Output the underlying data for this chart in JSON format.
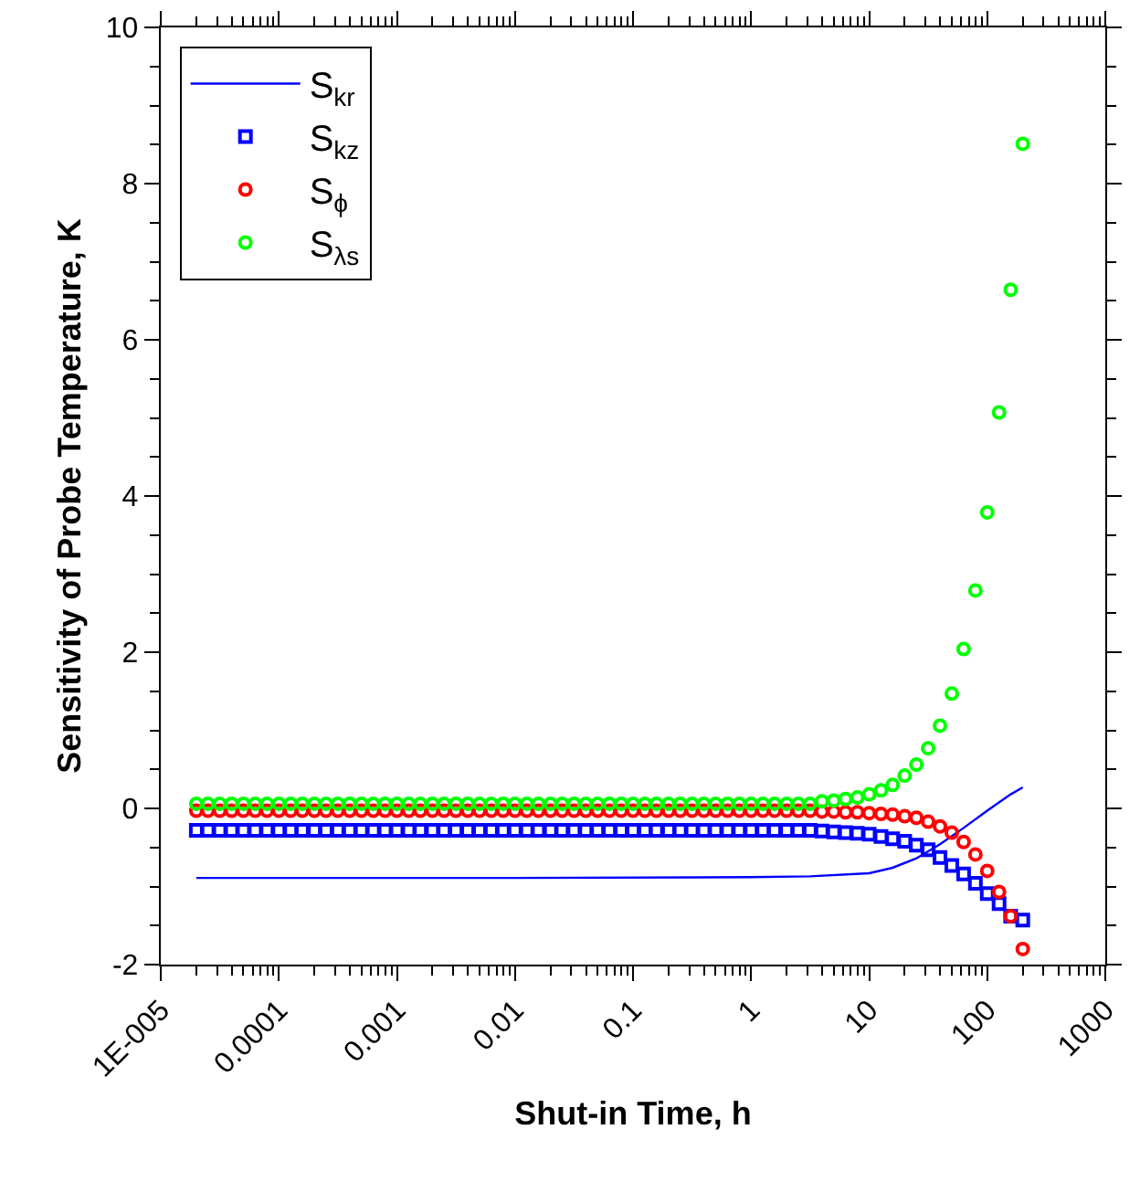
{
  "chart_data": {
    "type": "scatter",
    "xlabel": "Shut-in Time, h",
    "ylabel": "Sensitivity of Probe Temperature, K",
    "log": "x",
    "grid": false,
    "legend": "top left",
    "xlim": [
      1e-05,
      1000
    ],
    "xticks": [
      {
        "value": 1e-05,
        "label": "1E-005"
      },
      0.0001,
      0.001,
      0.01,
      0.1,
      1,
      10,
      100,
      1000
    ],
    "ylim": [
      -2,
      10
    ],
    "yticks": [
      -2,
      0,
      2,
      4,
      6,
      8,
      10
    ],
    "x": [
      2e-05,
      2.51e-05,
      3.16e-05,
      3.98e-05,
      5.01e-05,
      6.31e-05,
      7.94e-05,
      0.0001,
      0.000126,
      0.000158,
      0.0002,
      0.000251,
      0.000316,
      0.000398,
      0.000501,
      0.000631,
      0.000794,
      0.001,
      0.00126,
      0.00158,
      0.002,
      0.00251,
      0.00316,
      0.00398,
      0.00501,
      0.00631,
      0.00794,
      0.01,
      0.0126,
      0.0158,
      0.02,
      0.0251,
      0.0316,
      0.0398,
      0.0501,
      0.0631,
      0.0794,
      0.1,
      0.126,
      0.158,
      0.2,
      0.251,
      0.316,
      0.398,
      0.501,
      0.631,
      0.794,
      1,
      1.26,
      1.58,
      2,
      2.51,
      3.16,
      3.98,
      5.01,
      6.31,
      7.94,
      10,
      12.6,
      15.8,
      20,
      25.1,
      31.6,
      39.8,
      50.1,
      63.1,
      79.4,
      100,
      126,
      158,
      200
    ],
    "series": [
      {
        "name": "S$_{kr}$",
        "type": "line",
        "line_style": "solid",
        "marker": "none",
        "color": "#0000ff",
        "x": [
          2e-05,
          0.01,
          1,
          3.16,
          10,
          15.8,
          25.1,
          39.8,
          63.1,
          100,
          158,
          200
        ],
        "values": [
          -0.89,
          -0.89,
          -0.88,
          -0.87,
          -0.83,
          -0.76,
          -0.64,
          -0.46,
          -0.25,
          -0.03,
          0.18,
          0.27
        ]
      },
      {
        "name": "S$_{kz}$",
        "type": "scatter",
        "marker": "square",
        "color": "#0000ff",
        "values": [
          -0.28,
          -0.28,
          -0.28,
          -0.28,
          -0.28,
          -0.28,
          -0.28,
          -0.28,
          -0.28,
          -0.28,
          -0.28,
          -0.28,
          -0.28,
          -0.28,
          -0.28,
          -0.28,
          -0.28,
          -0.28,
          -0.28,
          -0.28,
          -0.28,
          -0.28,
          -0.28,
          -0.28,
          -0.28,
          -0.28,
          -0.28,
          -0.28,
          -0.28,
          -0.28,
          -0.28,
          -0.28,
          -0.28,
          -0.28,
          -0.28,
          -0.28,
          -0.28,
          -0.28,
          -0.28,
          -0.28,
          -0.28,
          -0.28,
          -0.28,
          -0.28,
          -0.28,
          -0.28,
          -0.28,
          -0.28,
          -0.28,
          -0.28,
          -0.28,
          -0.28,
          -0.28,
          -0.29,
          -0.3,
          -0.31,
          -0.32,
          -0.33,
          -0.36,
          -0.39,
          -0.42,
          -0.47,
          -0.53,
          -0.63,
          -0.73,
          -0.84,
          -0.96,
          -1.09,
          -1.22,
          -1.38,
          -1.43
        ]
      },
      {
        "name": "S$_{ϕ}$",
        "type": "scatter",
        "marker": "circle",
        "color": "#ff0000",
        "values": [
          -0.03,
          -0.03,
          -0.03,
          -0.03,
          -0.03,
          -0.03,
          -0.03,
          -0.03,
          -0.03,
          -0.03,
          -0.03,
          -0.03,
          -0.03,
          -0.03,
          -0.03,
          -0.03,
          -0.03,
          -0.03,
          -0.03,
          -0.03,
          -0.03,
          -0.03,
          -0.03,
          -0.03,
          -0.03,
          -0.03,
          -0.03,
          -0.03,
          -0.03,
          -0.03,
          -0.03,
          -0.03,
          -0.03,
          -0.03,
          -0.03,
          -0.03,
          -0.03,
          -0.03,
          -0.03,
          -0.03,
          -0.03,
          -0.03,
          -0.03,
          -0.03,
          -0.03,
          -0.03,
          -0.03,
          -0.03,
          -0.03,
          -0.03,
          -0.03,
          -0.03,
          -0.03,
          -0.04,
          -0.04,
          -0.05,
          -0.05,
          -0.06,
          -0.07,
          -0.08,
          -0.1,
          -0.12,
          -0.17,
          -0.23,
          -0.31,
          -0.43,
          -0.59,
          -0.8,
          -1.07,
          -1.38,
          -1.8
        ]
      },
      {
        "name": "S$_{λs}$",
        "type": "scatter",
        "marker": "circle",
        "color": "#00ff00",
        "values": [
          0.06,
          0.06,
          0.06,
          0.06,
          0.06,
          0.06,
          0.06,
          0.06,
          0.06,
          0.06,
          0.06,
          0.06,
          0.06,
          0.06,
          0.06,
          0.06,
          0.06,
          0.06,
          0.06,
          0.06,
          0.06,
          0.06,
          0.06,
          0.06,
          0.06,
          0.06,
          0.06,
          0.06,
          0.06,
          0.06,
          0.06,
          0.06,
          0.06,
          0.06,
          0.06,
          0.06,
          0.06,
          0.06,
          0.06,
          0.06,
          0.06,
          0.06,
          0.06,
          0.06,
          0.06,
          0.06,
          0.06,
          0.06,
          0.06,
          0.06,
          0.06,
          0.06,
          0.06,
          0.09,
          0.1,
          0.12,
          0.14,
          0.18,
          0.23,
          0.3,
          0.42,
          0.56,
          0.77,
          1.06,
          1.47,
          2.04,
          2.79,
          3.79,
          5.07,
          6.64,
          8.51
        ]
      }
    ]
  }
}
